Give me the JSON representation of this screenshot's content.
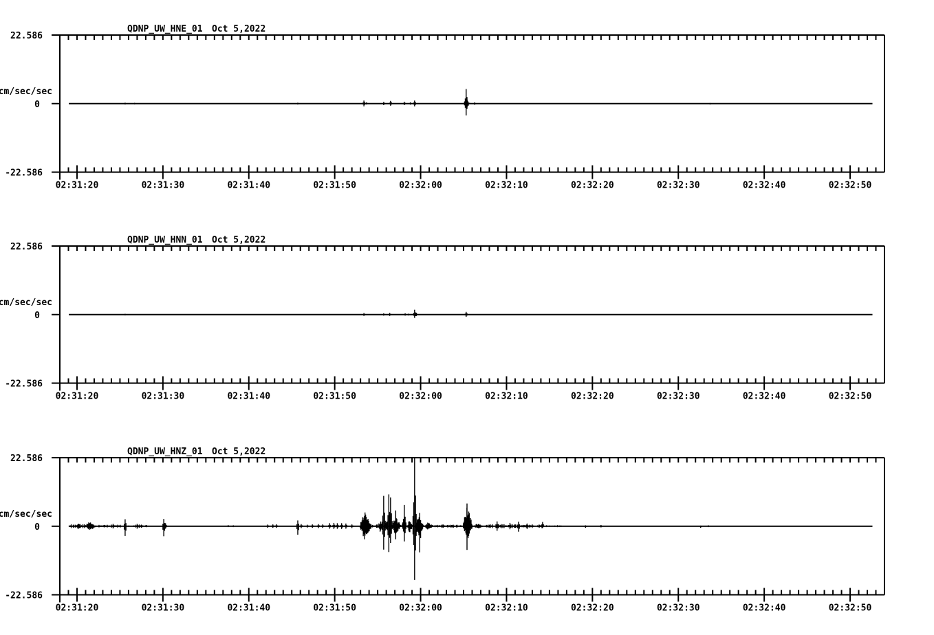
{
  "page": {
    "background": "#ffffff",
    "ink": "#000000"
  },
  "chart_data": {
    "type": "line",
    "kind": "seismogram-acceleration-traces",
    "date": "Oct 5,2022",
    "ylabel": "cm/sec/sec",
    "y_tick_labels": [
      "22.586",
      "0",
      "-22.586"
    ],
    "ylim": [
      -22.586,
      22.586
    ],
    "x_axis": {
      "visible_span_seconds": 96,
      "t0_time": "02:31:18",
      "minor_tick_interval_s": 1,
      "major_tick_interval_s": 10,
      "first_major_tick_s": 2,
      "major_tick_labels": [
        "02:31:20",
        "02:31:30",
        "02:31:40",
        "02:31:50",
        "02:32:00",
        "02:32:10",
        "02:32:20",
        "02:32:30",
        "02:32:40",
        "02:32:50"
      ]
    },
    "panels": [
      {
        "title": "QDNP_UW_HNE_01",
        "trace": {
          "t_start": 1.05,
          "t_end": 94.6,
          "features": [
            {
              "type": "spike",
              "t": 7.6,
              "up": 0.3,
              "dn": 0.3
            },
            {
              "type": "spike",
              "t": 8.7,
              "up": 0.25,
              "dn": 0.25
            },
            {
              "type": "spike",
              "t": 27.7,
              "up": 0.3,
              "dn": 0.3
            },
            {
              "type": "spike",
              "t": 35.4,
              "up": 1.0,
              "dn": 0.9
            },
            {
              "type": "spike",
              "t": 35.7,
              "up": 0.4,
              "dn": 0.3
            },
            {
              "type": "spike",
              "t": 37.7,
              "up": 0.55,
              "dn": 0.5
            },
            {
              "type": "spike",
              "t": 38.5,
              "up": 0.9,
              "dn": 0.7
            },
            {
              "type": "spike",
              "t": 40.1,
              "up": 0.6,
              "dn": 0.5
            },
            {
              "type": "spike",
              "t": 40.8,
              "up": 0.4,
              "dn": 0.35
            },
            {
              "type": "spike",
              "t": 41.3,
              "up": 1.0,
              "dn": 0.9
            },
            {
              "type": "burst",
              "t0": 47.0,
              "t1": 47.8,
              "up": 1.8,
              "dn": 1.5,
              "peak": 0.4
            },
            {
              "type": "spike",
              "t": 47.3,
              "up": 4.8,
              "dn": 3.9
            },
            {
              "type": "spike",
              "t": 48.3,
              "up": 0.4,
              "dn": 0.4
            },
            {
              "type": "spike",
              "t": 75.7,
              "up": 0.2,
              "dn": 0.3
            }
          ]
        }
      },
      {
        "title": "QDNP_UW_HNN_01",
        "trace": {
          "t_start": 1.05,
          "t_end": 94.6,
          "features": [
            {
              "type": "spike",
              "t": 7.6,
              "up": 0.25,
              "dn": 0.25
            },
            {
              "type": "spike",
              "t": 35.4,
              "up": 0.5,
              "dn": 0.45
            },
            {
              "type": "spike",
              "t": 37.7,
              "up": 0.4,
              "dn": 0.35
            },
            {
              "type": "spike",
              "t": 38.4,
              "up": 0.55,
              "dn": 0.45
            },
            {
              "type": "spike",
              "t": 40.2,
              "up": 0.4,
              "dn": 0.35
            },
            {
              "type": "spike",
              "t": 40.6,
              "up": 0.3,
              "dn": 0.3
            },
            {
              "type": "spike",
              "t": 41.3,
              "up": 1.6,
              "dn": 1.1
            },
            {
              "type": "spike",
              "t": 41.5,
              "up": 0.6,
              "dn": 0.5
            },
            {
              "type": "spike",
              "t": 47.3,
              "up": 0.9,
              "dn": 0.75
            }
          ]
        }
      },
      {
        "title": "QDNP_UW_HNZ_01",
        "trace": {
          "t_start": 1.05,
          "t_end": 94.6,
          "features": [
            {
              "type": "noise",
              "t0": 1.0,
              "t1": 3.0,
              "amp": 0.7
            },
            {
              "type": "burst",
              "t0": 1.8,
              "t1": 2.6,
              "up": 1.2,
              "dn": 1.2,
              "peak": 0.5
            },
            {
              "type": "burst",
              "t0": 2.8,
              "t1": 4.4,
              "up": 1.5,
              "dn": 1.4,
              "peak": 0.4
            },
            {
              "type": "noise",
              "t0": 4.4,
              "t1": 7.2,
              "amp": 0.6
            },
            {
              "type": "spike",
              "t": 6.2,
              "up": 0.8,
              "dn": 0.7
            },
            {
              "type": "spike",
              "t": 7.6,
              "up": 2.3,
              "dn": 3.2
            },
            {
              "type": "noise",
              "t0": 7.8,
              "t1": 10.2,
              "amp": 0.6
            },
            {
              "type": "spike",
              "t": 9.0,
              "up": 0.8,
              "dn": 0.8
            },
            {
              "type": "spike",
              "t": 12.1,
              "up": 2.4,
              "dn": 3.3
            },
            {
              "type": "spike",
              "t": 12.3,
              "up": 1.0,
              "dn": 0.8
            },
            {
              "type": "spike",
              "t": 19.6,
              "up": 0.35,
              "dn": 0.3
            },
            {
              "type": "spike",
              "t": 20.2,
              "up": 0.3,
              "dn": 0.3
            },
            {
              "type": "spike",
              "t": 24.2,
              "up": 0.55,
              "dn": 0.5
            },
            {
              "type": "spike",
              "t": 24.8,
              "up": 0.6,
              "dn": 0.5
            },
            {
              "type": "spike",
              "t": 25.2,
              "up": 0.65,
              "dn": 0.55
            },
            {
              "type": "spike",
              "t": 27.7,
              "up": 1.9,
              "dn": 2.8
            },
            {
              "type": "spike",
              "t": 28.1,
              "up": 0.7,
              "dn": 0.6
            },
            {
              "type": "spike",
              "t": 28.8,
              "up": 0.5,
              "dn": 0.45
            },
            {
              "type": "spike",
              "t": 29.4,
              "up": 0.6,
              "dn": 0.5
            },
            {
              "type": "spike",
              "t": 30.1,
              "up": 0.7,
              "dn": 0.6
            },
            {
              "type": "spike",
              "t": 30.6,
              "up": 0.6,
              "dn": 0.55
            },
            {
              "type": "spike",
              "t": 31.4,
              "up": 1.0,
              "dn": 0.8
            },
            {
              "type": "spike",
              "t": 31.9,
              "up": 1.1,
              "dn": 0.9
            },
            {
              "type": "spike",
              "t": 32.3,
              "up": 1.0,
              "dn": 0.85
            },
            {
              "type": "spike",
              "t": 32.8,
              "up": 1.0,
              "dn": 0.9
            },
            {
              "type": "spike",
              "t": 33.3,
              "up": 0.9,
              "dn": 0.8
            },
            {
              "type": "spike",
              "t": 34.0,
              "up": 0.6,
              "dn": 0.6
            },
            {
              "type": "burst",
              "t0": 34.9,
              "t1": 36.4,
              "up": 5.2,
              "dn": 4.9,
              "peak": 0.35
            },
            {
              "type": "noise",
              "t0": 36.4,
              "t1": 37.0,
              "amp": 0.7
            },
            {
              "type": "burst",
              "t0": 37.0,
              "t1": 37.6,
              "up": 2.2,
              "dn": 2.0,
              "peak": 0.5
            },
            {
              "type": "spike",
              "t": 37.7,
              "up": 10.0,
              "dn": 7.7
            },
            {
              "type": "burst",
              "t0": 37.8,
              "t1": 38.2,
              "up": 1.8,
              "dn": 1.6,
              "peak": 0.5
            },
            {
              "type": "spike",
              "t": 38.3,
              "up": 10.5,
              "dn": 8.5
            },
            {
              "type": "spike",
              "t": 38.5,
              "up": 9.5,
              "dn": 5.5
            },
            {
              "type": "burst",
              "t0": 38.6,
              "t1": 39.8,
              "up": 3.2,
              "dn": 3.0,
              "peak": 0.4
            },
            {
              "type": "spike",
              "t": 39.1,
              "up": 5.2,
              "dn": 4.3
            },
            {
              "type": "burst",
              "t0": 39.8,
              "t1": 40.4,
              "up": 3.0,
              "dn": 2.6,
              "peak": 0.5
            },
            {
              "type": "spike",
              "t": 40.1,
              "up": 7.0,
              "dn": 5.0
            },
            {
              "type": "burst",
              "t0": 40.4,
              "t1": 41.1,
              "up": 2.6,
              "dn": 2.4,
              "peak": 0.5
            },
            {
              "type": "spike",
              "t": 41.3,
              "up": 22.5,
              "dn": 17.7
            },
            {
              "type": "burst",
              "t0": 41.4,
              "t1": 42.4,
              "up": 3.6,
              "dn": 4.4,
              "peak": 0.3
            },
            {
              "type": "spike",
              "t": 41.9,
              "up": 4.4,
              "dn": 8.6
            },
            {
              "type": "burst",
              "t0": 42.4,
              "t1": 43.6,
              "up": 1.4,
              "dn": 1.3,
              "peak": 0.4
            },
            {
              "type": "noise",
              "t0": 43.6,
              "t1": 46.8,
              "amp": 0.5
            },
            {
              "type": "spike",
              "t": 44.6,
              "up": 0.6,
              "dn": 0.5
            },
            {
              "type": "spike",
              "t": 45.8,
              "up": 0.5,
              "dn": 0.5
            },
            {
              "type": "burst",
              "t0": 46.9,
              "t1": 48.1,
              "up": 7.6,
              "dn": 5.0,
              "peak": 0.4
            },
            {
              "type": "spike",
              "t": 47.4,
              "up": 7.5,
              "dn": 7.8
            },
            {
              "type": "burst",
              "t0": 48.1,
              "t1": 49.4,
              "up": 1.0,
              "dn": 0.9,
              "peak": 0.4
            },
            {
              "type": "noise",
              "t0": 49.4,
              "t1": 56.5,
              "amp": 0.7
            },
            {
              "type": "spike",
              "t": 50.9,
              "up": 1.6,
              "dn": 1.5
            },
            {
              "type": "spike",
              "t": 52.4,
              "up": 1.1,
              "dn": 1.0
            },
            {
              "type": "spike",
              "t": 53.4,
              "up": 1.5,
              "dn": 1.8
            },
            {
              "type": "spike",
              "t": 54.4,
              "up": 0.9,
              "dn": 0.9
            },
            {
              "type": "spike",
              "t": 56.2,
              "up": 1.4,
              "dn": 0.6
            },
            {
              "type": "noise",
              "t0": 56.5,
              "t1": 58.5,
              "amp": 0.35
            },
            {
              "type": "spike",
              "t": 61.2,
              "up": 0.3,
              "dn": 0.5
            },
            {
              "type": "spike",
              "t": 63.0,
              "up": 0.4,
              "dn": 0.4
            },
            {
              "type": "spike",
              "t": 74.6,
              "up": 0.2,
              "dn": 0.5
            },
            {
              "type": "spike",
              "t": 75.5,
              "up": 0.3,
              "dn": 0.3
            }
          ]
        }
      }
    ]
  }
}
